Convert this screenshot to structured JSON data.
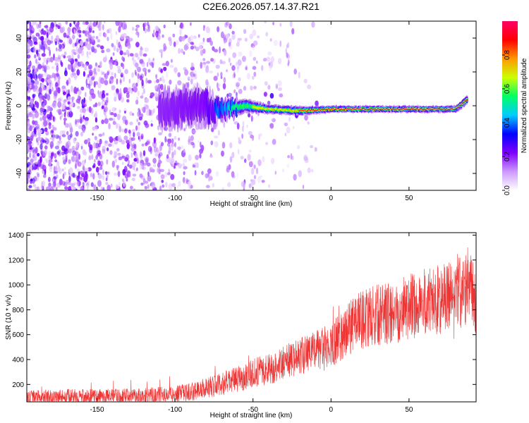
{
  "title": "C2E6.2026.057.14.37.R21",
  "chart_data": [
    {
      "type": "heatmap",
      "name": "spectrogram",
      "xlabel": "Height of straight line (km)",
      "ylabel": "Frequency (Hz)",
      "xlim": [
        -195,
        93
      ],
      "ylim": [
        -50,
        50
      ],
      "xticks": [
        -150,
        -100,
        -50,
        0,
        50
      ],
      "yticks": [
        -40,
        -20,
        0,
        20,
        40
      ],
      "colorbar": {
        "label": "Normalized spectral amplitude",
        "range": [
          0,
          1
        ],
        "ticks": [
          0,
          0.2,
          0.4,
          0.6,
          0.8
        ],
        "tick_labels": [
          "0.0",
          "0.2",
          "0.4",
          "0.6",
          "0.8"
        ],
        "colormap": [
          "#ffffff",
          "#cc99ff",
          "#7f00ff",
          "#0000ff",
          "#00ccff",
          "#00ff66",
          "#ccff00",
          "#ff9900",
          "#ff0000",
          "#ff0066"
        ]
      },
      "noise_region": {
        "x_from": -195,
        "x_to": -30,
        "amplitude": 0.15
      },
      "ridge": [
        {
          "x": -110,
          "y": -2,
          "amplitude": 0.2,
          "width_hz": 8
        },
        {
          "x": -80,
          "y": 0,
          "amplitude": 0.22,
          "width_hz": 8
        },
        {
          "x": -70,
          "y": -3,
          "amplitude": 0.45,
          "width_hz": 4
        },
        {
          "x": -55,
          "y": 0,
          "amplitude": 0.6,
          "width_hz": 3
        },
        {
          "x": -40,
          "y": -2,
          "amplitude": 0.75,
          "width_hz": 2
        },
        {
          "x": -20,
          "y": -3,
          "amplitude": 0.85,
          "width_hz": 2
        },
        {
          "x": 0,
          "y": -2,
          "amplitude": 0.9,
          "width_hz": 1.5
        },
        {
          "x": 50,
          "y": -2,
          "amplitude": 0.9,
          "width_hz": 1.5
        },
        {
          "x": 80,
          "y": -2,
          "amplitude": 0.92,
          "width_hz": 1.5
        },
        {
          "x": 88,
          "y": 4,
          "amplitude": 0.95,
          "width_hz": 2
        }
      ]
    },
    {
      "type": "line",
      "name": "snr",
      "xlabel": "Height of straight line (km)",
      "ylabel": "SNR (10 * v/v)",
      "xlim": [
        -195,
        93
      ],
      "ylim": [
        60,
        1420
      ],
      "xticks": [
        -150,
        -100,
        -50,
        0,
        50
      ],
      "yticks": [
        200,
        400,
        600,
        800,
        1000,
        1200,
        1400
      ],
      "color": "#ee3333",
      "series": [
        {
          "name": "SNR",
          "x": [
            -195,
            -175,
            -150,
            -125,
            -100,
            -90,
            -80,
            -70,
            -60,
            -50,
            -40,
            -30,
            -20,
            -10,
            0,
            10,
            20,
            30,
            40,
            50,
            60,
            70,
            80,
            88,
            93
          ],
          "y": [
            90,
            100,
            100,
            105,
            120,
            140,
            175,
            200,
            240,
            295,
            320,
            380,
            420,
            470,
            510,
            640,
            720,
            760,
            780,
            820,
            860,
            880,
            920,
            1000,
            880
          ]
        }
      ]
    }
  ]
}
